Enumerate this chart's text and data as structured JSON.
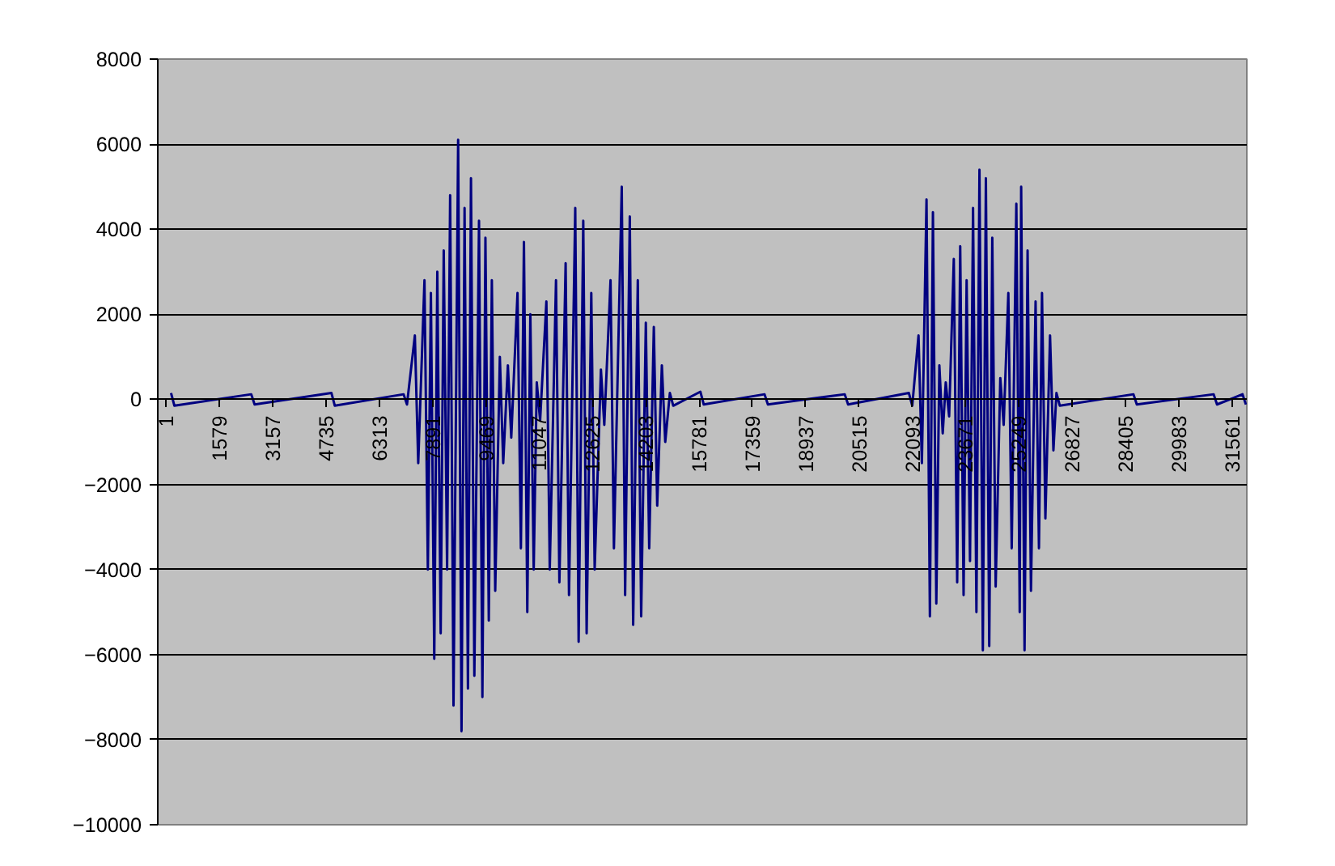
{
  "chart_data": {
    "type": "line",
    "x": [
      143,
      243,
      2518,
      2618,
      4893,
      4993,
      7030,
      7130,
      7363,
      7463,
      7648,
      7748,
      7838,
      7938,
      8028,
      8128,
      8218,
      8318,
      8408,
      8508,
      8645,
      8745,
      8835,
      8935,
      9025,
      9125,
      9263,
      9363,
      9453,
      9553,
      9643,
      9743,
      9880,
      9980,
      10118,
      10218,
      10403,
      10503,
      10593,
      10693,
      10783,
      10883,
      10973,
      11073,
      11258,
      11358,
      11543,
      11643,
      11828,
      11928,
      12113,
      12213,
      12350,
      12450,
      12588,
      12688,
      12873,
      12973,
      13158,
      13258,
      13490,
      13590,
      13728,
      13828,
      13965,
      14065,
      14203,
      14303,
      14440,
      14540,
      14678,
      14778,
      14915,
      15015,
      15818,
      15918,
      17718,
      17818,
      20093,
      20193,
      21993,
      22093,
      22278,
      22378,
      22515,
      22615,
      22705,
      22805,
      22895,
      22995,
      23085,
      23185,
      23323,
      23423,
      23513,
      23613,
      23703,
      23803,
      23893,
      23993,
      24083,
      24183,
      24273,
      24373,
      24463,
      24563,
      24700,
      24800,
      24938,
      25038,
      25175,
      25275,
      25318,
      25418,
      25508,
      25608,
      25745,
      25845,
      25935,
      26035,
      26173,
      26273,
      26363,
      26463,
      28643,
      28743,
      31018,
      31118,
      31873,
      31973
    ],
    "series": [
      {
        "color": "#000080",
        "values": [
          150,
          -150,
          120,
          -120,
          150,
          -150,
          120,
          -120,
          1500,
          -1500,
          2800,
          -4000,
          2500,
          -6100,
          3000,
          -5500,
          3500,
          -4000,
          4800,
          -7200,
          6100,
          -7800,
          4500,
          -6800,
          5200,
          -6500,
          4200,
          -7000,
          3800,
          -5200,
          2800,
          -4500,
          1000,
          -1500,
          800,
          -900,
          2500,
          -3500,
          3700,
          -5000,
          2000,
          -4000,
          400,
          -500,
          2300,
          -4000,
          2800,
          -4300,
          3200,
          -4600,
          4500,
          -5700,
          4200,
          -5500,
          2500,
          -4000,
          700,
          -600,
          2800,
          -3500,
          5000,
          -4600,
          4300,
          -5300,
          2800,
          -5100,
          1800,
          -3500,
          1700,
          -2500,
          800,
          -1000,
          150,
          -150,
          180,
          -120,
          120,
          -120,
          120,
          -120,
          150,
          -150,
          1500,
          -1500,
          4700,
          -5100,
          4400,
          -4800,
          800,
          -800,
          400,
          -400,
          3300,
          -4300,
          3600,
          -4600,
          2800,
          -3800,
          4500,
          -5000,
          5400,
          -5900,
          5200,
          -5800,
          3800,
          -4400,
          500,
          -600,
          2500,
          -3500,
          4600,
          -5000,
          5000,
          -5900,
          3500,
          -4500,
          2300,
          -3500,
          2500,
          -2800,
          1500,
          -1200,
          150,
          -150,
          120,
          -120,
          120,
          -120,
          120,
          -120
        ]
      }
    ],
    "xlim": [
      -250,
      32000
    ],
    "xticks": [
      1,
      1579,
      3157,
      4735,
      6313,
      7891,
      9469,
      11047,
      12625,
      14203,
      15781,
      17359,
      18937,
      20515,
      22093,
      23671,
      25249,
      26827,
      28405,
      29983,
      31561
    ],
    "ylim": [
      -10000,
      8000
    ],
    "yticks": [
      -10000,
      -8000,
      -6000,
      -4000,
      -2000,
      0,
      2000,
      4000,
      6000,
      8000
    ],
    "grid": "y",
    "line_style": "solid"
  }
}
